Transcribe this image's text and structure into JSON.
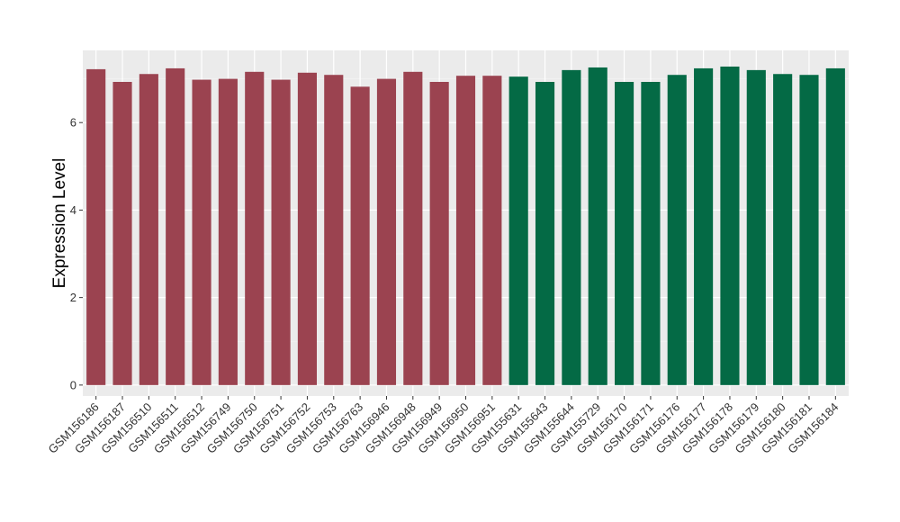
{
  "chart_data": {
    "type": "bar",
    "title": "",
    "xlabel": "",
    "ylabel": "Expression Level",
    "ylim": [
      -0.25,
      7.65
    ],
    "yticks": [
      0,
      2,
      4,
      6
    ],
    "grid": true,
    "legend": "none",
    "background": "#ebebeb",
    "categories": [
      "GSM156186",
      "GSM156187",
      "GSM156510",
      "GSM156511",
      "GSM156512",
      "GSM156749",
      "GSM156750",
      "GSM156751",
      "GSM156752",
      "GSM156753",
      "GSM156763",
      "GSM156946",
      "GSM156948",
      "GSM156949",
      "GSM156950",
      "GSM156951",
      "GSM155631",
      "GSM155643",
      "GSM155644",
      "GSM155729",
      "GSM156170",
      "GSM156171",
      "GSM156176",
      "GSM156177",
      "GSM156178",
      "GSM156179",
      "GSM156180",
      "GSM156181",
      "GSM156184"
    ],
    "values": [
      7.22,
      6.93,
      7.11,
      7.24,
      6.98,
      7.0,
      7.16,
      6.98,
      7.14,
      7.09,
      6.82,
      7.0,
      7.16,
      6.93,
      7.07,
      7.07,
      7.05,
      6.93,
      7.2,
      7.26,
      6.93,
      6.93,
      7.09,
      7.24,
      7.28,
      7.2,
      7.11,
      7.09,
      7.24
    ],
    "group_colors": [
      "#9b4350",
      "#046a45"
    ],
    "groups": [
      0,
      0,
      0,
      0,
      0,
      0,
      0,
      0,
      0,
      0,
      0,
      0,
      0,
      0,
      0,
      0,
      1,
      1,
      1,
      1,
      1,
      1,
      1,
      1,
      1,
      1,
      1,
      1,
      1
    ]
  }
}
